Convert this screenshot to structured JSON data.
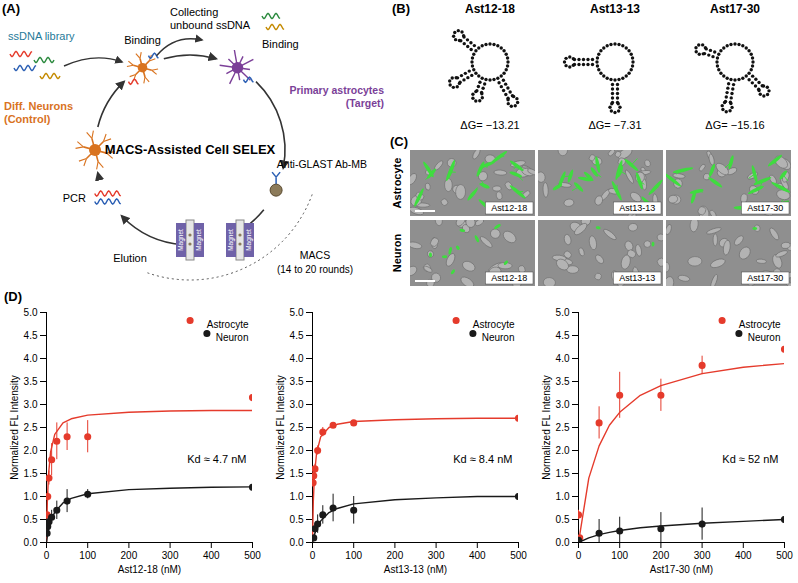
{
  "panels": {
    "A": {
      "letter": "(A)",
      "title": "MACS-Assisted Cell SELEX",
      "ssdna_library": "ssDNA library",
      "binding_control": "Binding",
      "collecting": "Collecting unbound ssDNA",
      "binding_target": "Binding",
      "target": "Primary astrocytes (Target)",
      "antibody": "Anti-GLAST Ab-MB",
      "macs": "MACS",
      "rounds": "(14 to 20 rounds)",
      "elution": "Elution",
      "pcr": "PCR",
      "control": "Diff. Neurons (Control)",
      "magnet": "Magnet"
    },
    "B": {
      "letter": "(B)",
      "structures": [
        {
          "name": "Ast12-18",
          "delta_g": "ΔG= −13.21"
        },
        {
          "name": "Ast13-13",
          "delta_g": "ΔG= −7.31"
        },
        {
          "name": "Ast17-30",
          "delta_g": "ΔG= −15.16"
        }
      ]
    },
    "C": {
      "letter": "(C)",
      "rows": [
        "Astrocyte",
        "Neuron"
      ],
      "columns": [
        "Ast12-18",
        "Ast13-13",
        "Ast17-30"
      ]
    },
    "D": {
      "letter": "(D)"
    }
  },
  "chart_data": [
    {
      "type": "scatter",
      "x_label": "Ast12-18 (nM)",
      "y_label": "Normalized FL Intensity",
      "xlim": [
        0,
        500
      ],
      "xticks": [
        0,
        100,
        200,
        300,
        400,
        500
      ],
      "ylim": [
        0,
        5
      ],
      "yticks": [
        {
          "value": 0,
          "label": "0.0"
        },
        0.5,
        {
          "value": 1,
          "label": "1.0"
        },
        1.5,
        {
          "value": 2,
          "label": "2.0"
        },
        2.5,
        {
          "value": 3,
          "label": "3.0"
        },
        3.5,
        {
          "value": 4,
          "label": "4.0"
        },
        4.5,
        {
          "value": 5,
          "label": "5.0"
        }
      ],
      "legend": "top-right",
      "annotation": "Kd ≈ 4.7 nM",
      "series": [
        {
          "name": "Astrocyte",
          "color": "#e53b2c",
          "marker": "circle",
          "x": [
            1.5,
            3,
            6,
            12.5,
            25,
            50,
            100,
            500
          ],
          "values": [
            0.6,
            1.0,
            1.4,
            1.8,
            2.2,
            2.3,
            2.3,
            3.15
          ],
          "errors": [
            0.05,
            0.1,
            0.15,
            0.35,
            0.4,
            0.3,
            0.35,
            0.6
          ],
          "fit": {
            "x": [
              0,
              2,
              5,
              10,
              20,
              40,
              60,
              100,
              200,
              300,
              400,
              500
            ],
            "values": [
              0,
              0.87,
              1.49,
              1.97,
              2.35,
              2.6,
              2.69,
              2.77,
              2.83,
              2.86,
              2.87,
              2.87
            ]
          }
        },
        {
          "name": "Neuron",
          "color": "#1a1a1a",
          "marker": "circle",
          "x": [
            1.5,
            3,
            6,
            12.5,
            25,
            50,
            100,
            500
          ],
          "values": [
            0.2,
            0.35,
            0.45,
            0.55,
            0.7,
            0.9,
            1.05,
            1.2
          ],
          "errors": [
            0.05,
            0.05,
            0.1,
            0.15,
            0.2,
            0.25,
            0.1,
            0.3
          ],
          "fit": {
            "x": [
              0,
              2,
              5,
              10,
              20,
              40,
              60,
              100,
              200,
              300,
              400,
              500
            ],
            "values": [
              0,
              0.13,
              0.27,
              0.45,
              0.66,
              0.86,
              0.96,
              1.06,
              1.15,
              1.18,
              1.2,
              1.21
            ]
          }
        }
      ]
    },
    {
      "type": "scatter",
      "x_label": "Ast13-13 (nM)",
      "y_label": "Normalized FL Intensity",
      "xlim": [
        0,
        500
      ],
      "xticks": [
        0,
        100,
        200,
        300,
        400,
        500
      ],
      "ylim": [
        0,
        5
      ],
      "yticks": [
        {
          "value": 0,
          "label": "0.0"
        },
        0.5,
        {
          "value": 1,
          "label": "1.0"
        },
        1.5,
        {
          "value": 2,
          "label": "2.0"
        },
        2.5,
        {
          "value": 3,
          "label": "3.0"
        },
        3.5,
        {
          "value": 4,
          "label": "4.0"
        },
        4.5,
        {
          "value": 5,
          "label": "5.0"
        }
      ],
      "legend": "top-right",
      "annotation": "Kd ≈ 8.4 nM",
      "series": [
        {
          "name": "Astrocyte",
          "color": "#e53b2c",
          "marker": "circle",
          "x": [
            1.5,
            3,
            6,
            12.5,
            25,
            50,
            100,
            500
          ],
          "values": [
            1.3,
            1.45,
            1.6,
            2.0,
            2.4,
            2.55,
            2.6,
            2.7
          ],
          "errors": [
            0.1,
            0.1,
            0.1,
            0.1,
            0.1,
            0.05,
            0.05,
            0.1
          ],
          "fit": {
            "x": [
              0,
              2,
              5,
              10,
              20,
              40,
              60,
              100,
              200,
              300,
              400,
              500
            ],
            "values": [
              0,
              0.9,
              1.5,
              1.95,
              2.3,
              2.5,
              2.57,
              2.63,
              2.67,
              2.69,
              2.7,
              2.7
            ]
          }
        },
        {
          "name": "Neuron",
          "color": "#1a1a1a",
          "marker": "circle",
          "x": [
            3,
            6,
            12.5,
            25,
            50,
            100,
            500
          ],
          "values": [
            0.1,
            0.3,
            0.4,
            0.6,
            0.75,
            0.7,
            1.0
          ],
          "errors": [
            0.05,
            0.1,
            0.2,
            0.2,
            0.3,
            0.3,
            0.3
          ],
          "fit": {
            "x": [
              0,
              2,
              5,
              10,
              20,
              40,
              60,
              100,
              200,
              300,
              400,
              500
            ],
            "values": [
              0,
              0.08,
              0.18,
              0.3,
              0.47,
              0.65,
              0.74,
              0.84,
              0.93,
              0.97,
              1.0,
              1.0
            ]
          }
        }
      ]
    },
    {
      "type": "scatter",
      "x_label": "Ast17-30 (nM)",
      "y_label": "Normalized FL Intensity",
      "xlim": [
        0,
        500
      ],
      "xticks": [
        0,
        100,
        200,
        300,
        400,
        500
      ],
      "ylim": [
        0,
        5
      ],
      "yticks": [
        {
          "value": 0,
          "label": "0.0"
        },
        0.5,
        {
          "value": 1,
          "label": "1.0"
        },
        1.5,
        {
          "value": 2,
          "label": "2.0"
        },
        2.5,
        {
          "value": 3,
          "label": "3.0"
        },
        3.5,
        {
          "value": 4,
          "label": "4.0"
        },
        4.5,
        {
          "value": 5,
          "label": "5.0"
        }
      ],
      "legend": "top-right",
      "annotation": "Kd ≈ 52 nM",
      "series": [
        {
          "name": "Astrocyte",
          "color": "#e53b2c",
          "marker": "circle",
          "x": [
            0,
            3,
            50,
            100,
            200,
            300,
            500
          ],
          "values": [
            0.6,
            0.1,
            2.6,
            3.2,
            3.2,
            3.85,
            4.2
          ],
          "errors": [
            0.1,
            0.05,
            0.35,
            0.5,
            0.35,
            0.2,
            0.05
          ],
          "fit": {
            "x": [
              0,
              25,
              50,
              75,
              100,
              150,
              200,
              300,
              400,
              500
            ],
            "values": [
              0,
              1.4,
              2.1,
              2.55,
              2.83,
              3.2,
              3.41,
              3.67,
              3.81,
              3.89
            ]
          }
        },
        {
          "name": "Neuron",
          "color": "#1a1a1a",
          "marker": "circle",
          "x": [
            0,
            50,
            100,
            200,
            300,
            500
          ],
          "values": [
            0.05,
            0.2,
            0.25,
            0.3,
            0.4,
            0.5
          ],
          "errors": [
            0.05,
            0.3,
            0.3,
            0.35,
            0.35,
            0.3
          ],
          "fit": {
            "x": [
              0,
              25,
              50,
              75,
              100,
              150,
              200,
              300,
              400,
              500
            ],
            "values": [
              0,
              0.1,
              0.17,
              0.22,
              0.26,
              0.32,
              0.36,
              0.42,
              0.46,
              0.5
            ]
          }
        }
      ]
    }
  ]
}
